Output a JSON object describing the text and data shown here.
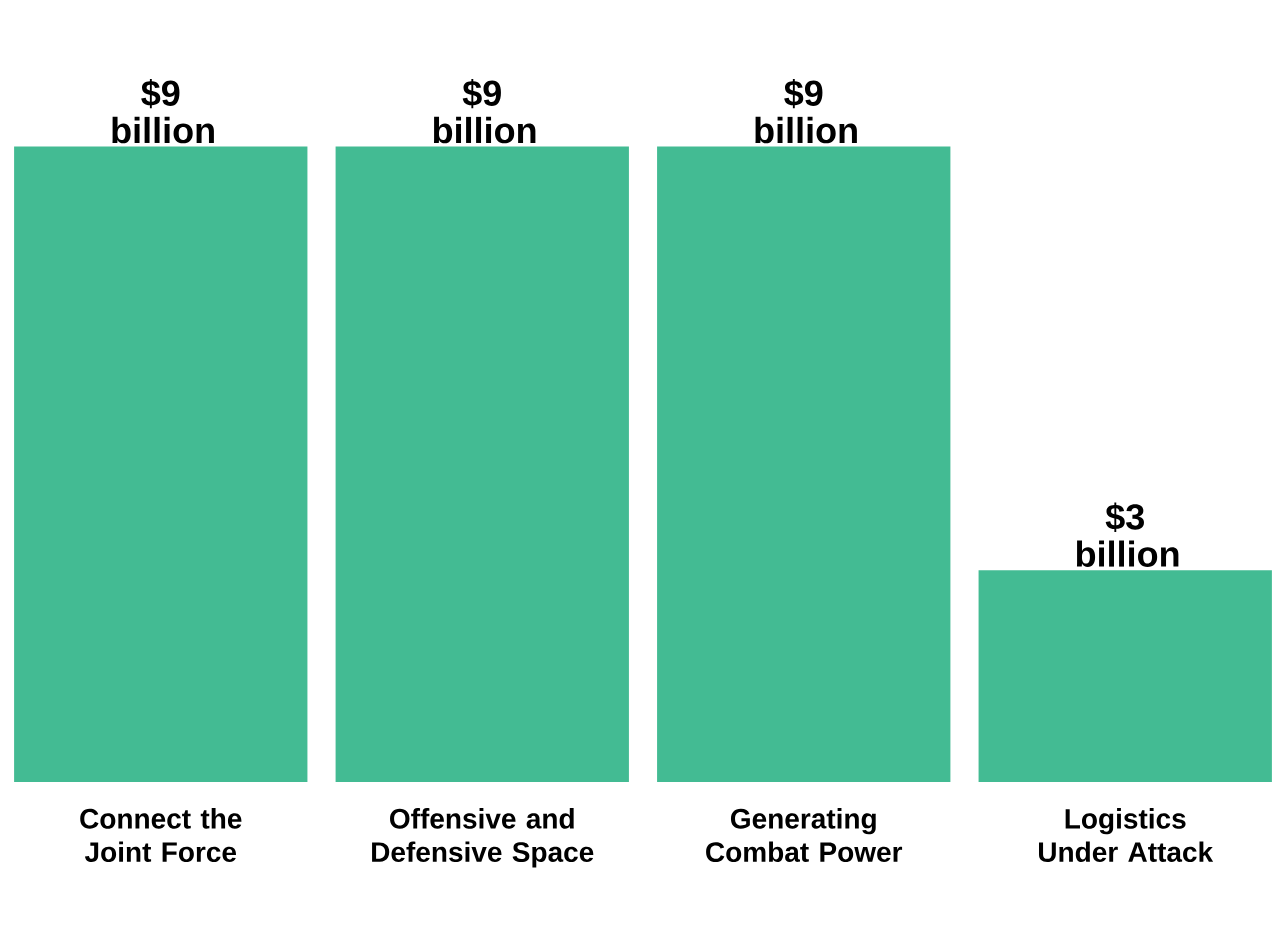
{
  "chart_data": {
    "type": "bar",
    "categories": [
      "Connect the Joint Force",
      "Offensive and Defensive Space",
      "Generating Combat Power",
      "Logistics Under Attack"
    ],
    "values": [
      9,
      9,
      9,
      3
    ],
    "value_labels": [
      "$9 billion",
      "$9 billion",
      "$9 billion",
      "$3 billion"
    ],
    "color": "#43bb93"
  }
}
